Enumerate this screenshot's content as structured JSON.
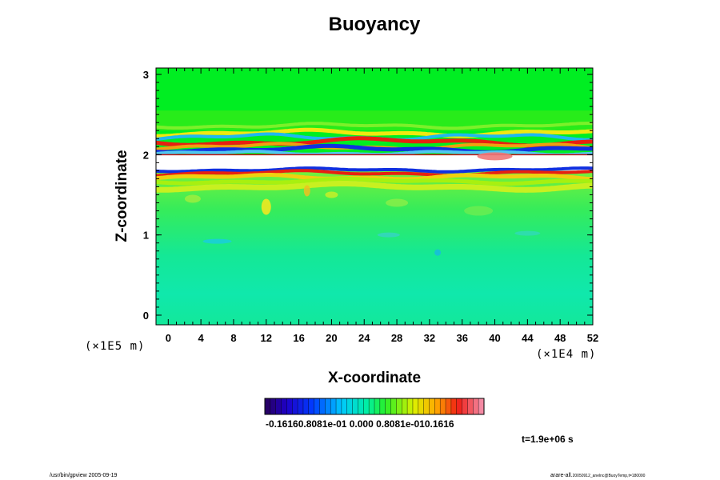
{
  "chart_data": {
    "type": "heatmap",
    "title": "Buoyancy",
    "xlabel": "X-coordinate",
    "ylabel": "Z-coordinate",
    "x_unit": "(×1E4 m)",
    "y_unit": "(×1E5 m)",
    "xlim": [
      -1.5,
      52
    ],
    "ylim": [
      -0.12,
      3.08
    ],
    "x_ticks": [
      "0",
      "4",
      "8",
      "12",
      "16",
      "20",
      "24",
      "28",
      "32",
      "36",
      "40",
      "44",
      "48",
      "52"
    ],
    "y_ticks": [
      "0",
      "1",
      "2",
      "3"
    ],
    "colorbar": {
      "ticklabels_text": "-0.16160.8081e-01 0.000 0.8081e-010.1616",
      "min": -0.1616,
      "max": 0.1616,
      "bins": 40
    },
    "time_label": "t=1.9e+06 s",
    "grid": false
  },
  "footer": {
    "left": "/usr/bin/gpview 2005-09-19",
    "right": "arare-all.",
    "right_small": "20050912_anelnc@BuoyTemp,t=180000"
  },
  "colors": {
    "background": "#ffffff",
    "upper_field": "#00ee22",
    "lower_field": "#10e8a0",
    "inversion_white": "#ffffff",
    "positive_strong": "#e81010",
    "negative_strong": "#0018d8"
  }
}
